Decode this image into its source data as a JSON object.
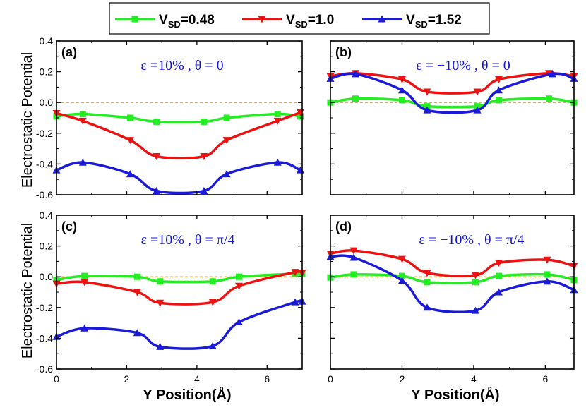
{
  "legend": [
    {
      "main": "V",
      "sub": "SD",
      "value": "=0.48",
      "color": "#22ee22",
      "marker": "square"
    },
    {
      "main": "V",
      "sub": "SD",
      "value": "=1.0",
      "color": "#ee1111",
      "marker": "triangle-down"
    },
    {
      "main": "V",
      "sub": "SD",
      "value": "=1.52",
      "color": "#1a1ad8",
      "marker": "triangle-up"
    }
  ],
  "ylabel": "Electrostatic Potential",
  "xlabel": "Y Position",
  "xlabel_unit": "(Å)",
  "chart_data": [
    {
      "type": "line",
      "panel": "(a)",
      "annotation": "ε =10% , θ = 0",
      "xlim": [
        0,
        7
      ],
      "ylim": [
        -0.6,
        0.4
      ],
      "xticks": [
        0,
        2,
        4,
        6
      ],
      "yticks": [
        -0.6,
        -0.4,
        -0.2,
        0.0,
        0.2,
        0.4
      ],
      "ytick_labels": [
        "-0.6",
        "-0.4",
        "-0.2",
        "0.0",
        "0.2",
        "0.4"
      ],
      "reference_line": 0,
      "series": [
        {
          "name": "VSD=0.48",
          "x": [
            0,
            0.75,
            2.1,
            2.85,
            4.2,
            4.85,
            6.3,
            6.95
          ],
          "values": [
            -0.09,
            -0.075,
            -0.1,
            -0.125,
            -0.125,
            -0.1,
            -0.075,
            -0.09
          ]
        },
        {
          "name": "VSD=1.0",
          "x": [
            0,
            0.75,
            2.1,
            2.85,
            4.2,
            4.85,
            6.3,
            6.95
          ],
          "values": [
            -0.07,
            -0.12,
            -0.245,
            -0.35,
            -0.35,
            -0.245,
            -0.12,
            -0.065
          ]
        },
        {
          "name": "VSD=1.52",
          "x": [
            0,
            0.75,
            2.1,
            2.85,
            4.2,
            4.85,
            6.3,
            6.95
          ],
          "values": [
            -0.44,
            -0.39,
            -0.465,
            -0.575,
            -0.575,
            -0.465,
            -0.39,
            -0.44
          ]
        }
      ]
    },
    {
      "type": "line",
      "panel": "(b)",
      "annotation": "ε = −10% , θ = 0",
      "xlim": [
        0,
        6.8
      ],
      "ylim": [
        -0.6,
        0.4
      ],
      "xticks": [
        0,
        2,
        4,
        6
      ],
      "yticks": [
        -0.6,
        -0.4,
        -0.2,
        0.0,
        0.2,
        0.4
      ],
      "ytick_labels": [],
      "reference_line": 0,
      "series": [
        {
          "name": "VSD=0.48",
          "x": [
            0,
            0.7,
            2.0,
            2.7,
            4.1,
            4.7,
            6.1,
            6.8
          ],
          "values": [
            0.0,
            0.025,
            0.015,
            -0.025,
            -0.025,
            0.015,
            0.025,
            0.0
          ]
        },
        {
          "name": "VSD=1.0",
          "x": [
            0,
            0.7,
            2.0,
            2.7,
            4.1,
            4.7,
            6.1,
            6.8
          ],
          "values": [
            0.17,
            0.19,
            0.15,
            0.07,
            0.07,
            0.15,
            0.19,
            0.17
          ]
        },
        {
          "name": "VSD=1.52",
          "x": [
            0,
            0.7,
            2.0,
            2.7,
            4.1,
            4.7,
            6.2,
            6.8
          ],
          "values": [
            0.155,
            0.185,
            0.08,
            -0.05,
            -0.05,
            0.08,
            0.185,
            0.155
          ]
        }
      ]
    },
    {
      "type": "line",
      "panel": "(c)",
      "annotation": "ε =10% , θ = π/4",
      "xlim": [
        0,
        7
      ],
      "ylim": [
        -0.6,
        0.4
      ],
      "xticks": [
        0,
        2,
        4,
        6
      ],
      "yticks": [
        -0.6,
        -0.4,
        -0.2,
        0.0,
        0.2,
        0.4
      ],
      "ytick_labels": [
        "-0.6",
        "-0.4",
        "-0.2",
        "0.0",
        "0.2",
        "0.4"
      ],
      "xtick_labels": [
        "0",
        "2",
        "4",
        "6"
      ],
      "reference_line": 0,
      "series": [
        {
          "name": "VSD=0.48",
          "x": [
            0,
            0.8,
            2.3,
            2.95,
            4.45,
            5.2,
            6.8,
            7.0
          ],
          "values": [
            -0.02,
            0.005,
            0.0,
            -0.03,
            -0.03,
            0.0,
            0.02,
            0.02
          ]
        },
        {
          "name": "VSD=1.0",
          "x": [
            0,
            0.8,
            2.3,
            2.95,
            4.45,
            5.2,
            6.8,
            7.0
          ],
          "values": [
            -0.045,
            -0.035,
            -0.1,
            -0.17,
            -0.165,
            -0.06,
            0.03,
            0.025
          ]
        },
        {
          "name": "VSD=1.52",
          "x": [
            0,
            0.8,
            2.3,
            2.95,
            4.45,
            5.2,
            6.8,
            7.0
          ],
          "values": [
            -0.39,
            -0.335,
            -0.365,
            -0.455,
            -0.45,
            -0.295,
            -0.165,
            -0.16
          ]
        }
      ]
    },
    {
      "type": "line",
      "panel": "(d)",
      "annotation": "ε = −10% , θ = π/4",
      "xlim": [
        0,
        6.8
      ],
      "ylim": [
        -0.6,
        0.4
      ],
      "xticks": [
        0,
        2,
        4,
        6
      ],
      "yticks": [
        -0.6,
        -0.4,
        -0.2,
        0.0,
        0.2,
        0.4
      ],
      "ytick_labels": [],
      "xtick_labels": [
        "0",
        "2",
        "4",
        "6"
      ],
      "reference_line": 0,
      "series": [
        {
          "name": "VSD=0.48",
          "x": [
            0,
            0.65,
            2.0,
            2.7,
            4.05,
            4.7,
            6.05,
            6.8
          ],
          "values": [
            -0.005,
            0.015,
            0.005,
            -0.035,
            -0.035,
            0.005,
            0.015,
            -0.02
          ]
        },
        {
          "name": "VSD=1.0",
          "x": [
            0,
            0.65,
            2.0,
            2.7,
            4.05,
            4.7,
            6.05,
            6.8
          ],
          "values": [
            0.15,
            0.17,
            0.115,
            0.025,
            0.01,
            0.09,
            0.11,
            0.07
          ]
        },
        {
          "name": "VSD=1.52",
          "x": [
            0,
            0.65,
            2.0,
            2.7,
            4.05,
            4.7,
            6.05,
            6.8
          ],
          "values": [
            0.13,
            0.125,
            -0.025,
            -0.2,
            -0.22,
            -0.1,
            -0.03,
            -0.085
          ]
        }
      ]
    }
  ]
}
